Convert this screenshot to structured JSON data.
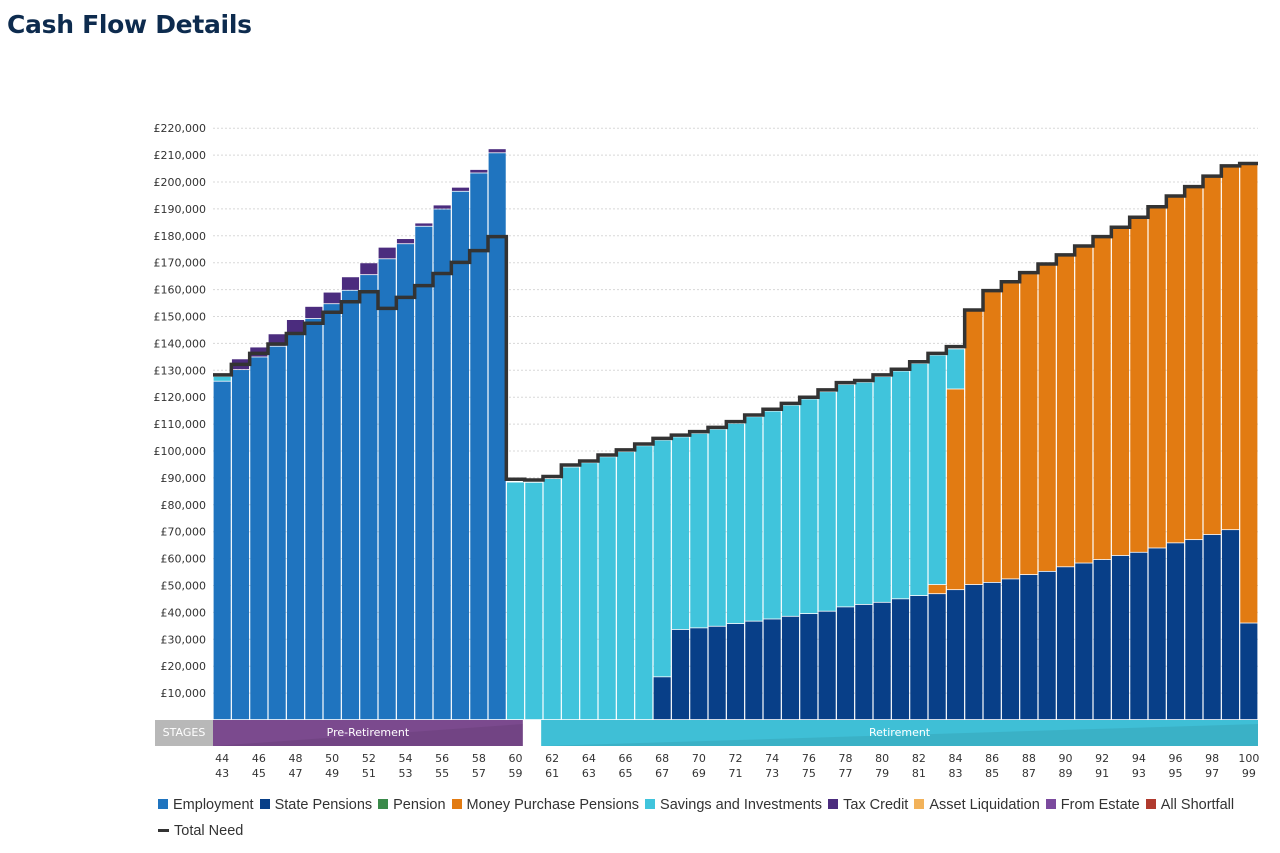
{
  "title": "Cash Flow Details",
  "chart_data": {
    "type": "bar",
    "stacked": true,
    "title": "",
    "xlabel": "",
    "ylabel": "",
    "ylim": [
      0,
      220000
    ],
    "yticks": [
      "£10,000",
      "£20,000",
      "£30,000",
      "£40,000",
      "£50,000",
      "£60,000",
      "£70,000",
      "£80,000",
      "£90,000",
      "£100,000",
      "£110,000",
      "£120,000",
      "£130,000",
      "£140,000",
      "£150,000",
      "£160,000",
      "£170,000",
      "£180,000",
      "£190,000",
      "£200,000",
      "£210,000",
      "£220,000"
    ],
    "ytick_values": [
      10000,
      20000,
      30000,
      40000,
      50000,
      60000,
      70000,
      80000,
      90000,
      100000,
      110000,
      120000,
      130000,
      140000,
      150000,
      160000,
      170000,
      180000,
      190000,
      200000,
      210000,
      220000
    ],
    "grid": true,
    "ages": [
      44,
      45,
      46,
      47,
      48,
      49,
      50,
      51,
      52,
      53,
      54,
      55,
      56,
      57,
      58,
      59,
      60,
      61,
      62,
      63,
      64,
      65,
      66,
      67,
      68,
      69,
      70,
      71,
      72,
      73,
      74,
      75,
      76,
      77,
      78,
      79,
      80,
      81,
      82,
      83,
      84,
      85,
      86,
      87,
      88,
      89,
      90,
      91,
      92,
      93,
      94,
      95,
      96,
      97,
      98,
      99,
      100
    ],
    "x_tick_labels_row1": [
      "44",
      "46",
      "48",
      "50",
      "52",
      "54",
      "56",
      "58",
      "60",
      "62",
      "64",
      "66",
      "68",
      "70",
      "72",
      "74",
      "76",
      "78",
      "80",
      "82",
      "84",
      "86",
      "88",
      "90",
      "92",
      "94",
      "96",
      "98",
      "100"
    ],
    "x_tick_labels_row2": [
      "43",
      "45",
      "47",
      "49",
      "51",
      "53",
      "55",
      "57",
      "59",
      "61",
      "63",
      "65",
      "67",
      "69",
      "71",
      "73",
      "75",
      "77",
      "79",
      "81",
      "83",
      "85",
      "87",
      "89",
      "91",
      "93",
      "95",
      "97",
      "99"
    ],
    "stages": {
      "label": "STAGES",
      "items": [
        {
          "name": "Pre-Retirement",
          "from_age": 44,
          "to_age": 60,
          "color": "#7b4a8e"
        },
        {
          "name": "Retirement",
          "from_age": 61,
          "to_age": 100,
          "color": "#3fbfd6"
        }
      ]
    },
    "series": [
      {
        "name": "Employment",
        "color": "#1f74bf",
        "values": [
          125800,
          130100,
          134800,
          138800,
          143100,
          149100,
          154600,
          159600,
          165400,
          171300,
          176900,
          183400,
          189800,
          196400,
          203200,
          210700,
          0,
          0,
          0,
          0,
          0,
          0,
          0,
          0,
          0,
          0,
          0,
          0,
          0,
          0,
          0,
          0,
          0,
          0,
          0,
          0,
          0,
          0,
          0,
          0,
          0,
          0,
          0,
          0,
          0,
          0,
          0,
          0,
          0,
          0,
          0,
          0,
          0,
          0,
          0,
          0,
          0
        ]
      },
      {
        "name": "State Pensions",
        "color": "#083f88",
        "values": [
          0,
          0,
          0,
          0,
          0,
          0,
          0,
          0,
          0,
          0,
          0,
          0,
          0,
          0,
          0,
          0,
          0,
          0,
          0,
          0,
          0,
          0,
          0,
          0,
          15900,
          33500,
          34100,
          34700,
          35700,
          36600,
          37400,
          38400,
          39400,
          40300,
          41900,
          42800,
          43600,
          44900,
          46100,
          46800,
          48300,
          50200,
          51000,
          52300,
          53900,
          55100,
          56800,
          58200,
          59500,
          61000,
          62200,
          63800,
          65700,
          66900,
          68800,
          70600,
          35900
        ]
      },
      {
        "name": "Pension",
        "color": "#3a8a4a",
        "values": [
          0,
          0,
          0,
          0,
          0,
          0,
          0,
          0,
          0,
          0,
          0,
          0,
          0,
          0,
          0,
          0,
          0,
          0,
          0,
          0,
          0,
          0,
          0,
          0,
          0,
          0,
          0,
          0,
          0,
          0,
          0,
          0,
          0,
          0,
          0,
          0,
          0,
          0,
          0,
          0,
          0,
          0,
          0,
          0,
          0,
          0,
          0,
          0,
          0,
          0,
          0,
          0,
          0,
          0,
          0,
          0,
          0
        ]
      },
      {
        "name": "Money Purchase Pensions",
        "color": "#e27b12",
        "values": [
          0,
          0,
          0,
          0,
          0,
          0,
          0,
          0,
          0,
          0,
          0,
          0,
          0,
          0,
          0,
          0,
          0,
          0,
          0,
          0,
          0,
          0,
          0,
          0,
          0,
          0,
          0,
          0,
          0,
          0,
          0,
          0,
          0,
          0,
          0,
          0,
          0,
          0,
          0,
          3400,
          74600,
          101700,
          108100,
          110100,
          111900,
          113900,
          115600,
          117500,
          119700,
          121700,
          124200,
          126500,
          128600,
          130900,
          132900,
          134900,
          170500
        ]
      },
      {
        "name": "Savings and Investments",
        "color": "#40c4dc",
        "values": [
          1800,
          0,
          0,
          0,
          0,
          0,
          0,
          0,
          0,
          0,
          0,
          0,
          0,
          0,
          0,
          0,
          88300,
          88200,
          89600,
          93900,
          95500,
          97700,
          99600,
          101800,
          88000,
          71600,
          72300,
          73300,
          74400,
          76000,
          77300,
          78500,
          79800,
          81600,
          82700,
          82600,
          83900,
          84700,
          86300,
          85300,
          14900,
          0,
          0,
          0,
          0,
          0,
          0,
          0,
          0,
          0,
          0,
          0,
          0,
          0,
          0,
          0,
          0
        ]
      },
      {
        "name": "Tax Credit",
        "color": "#4b2c7e",
        "values": [
          0,
          4000,
          3700,
          4600,
          5600,
          4500,
          4300,
          5000,
          4400,
          4300,
          1900,
          1200,
          1500,
          1500,
          1300,
          1500,
          0,
          0,
          0,
          0,
          0,
          0,
          0,
          0,
          0,
          0,
          0,
          0,
          0,
          0,
          0,
          0,
          0,
          0,
          0,
          0,
          0,
          0,
          0,
          0,
          0,
          0,
          0,
          0,
          0,
          0,
          0,
          0,
          0,
          0,
          0,
          0,
          0,
          0,
          0,
          0,
          0
        ]
      },
      {
        "name": "Asset Liquidation",
        "color": "#f2b25a",
        "values": [
          0,
          0,
          0,
          0,
          0,
          0,
          0,
          0,
          0,
          0,
          0,
          0,
          0,
          0,
          0,
          0,
          0,
          0,
          0,
          0,
          0,
          0,
          0,
          0,
          0,
          0,
          0,
          0,
          0,
          0,
          0,
          0,
          0,
          0,
          0,
          0,
          0,
          0,
          0,
          0,
          0,
          0,
          0,
          0,
          0,
          0,
          0,
          0,
          0,
          0,
          0,
          0,
          0,
          0,
          0,
          0,
          0
        ]
      },
      {
        "name": "From Estate",
        "color": "#7b4a9e",
        "values": [
          0,
          0,
          0,
          0,
          0,
          0,
          0,
          0,
          0,
          0,
          0,
          0,
          0,
          0,
          0,
          0,
          0,
          0,
          0,
          0,
          0,
          0,
          0,
          0,
          0,
          0,
          0,
          0,
          0,
          0,
          0,
          0,
          0,
          0,
          0,
          0,
          0,
          0,
          0,
          0,
          0,
          0,
          0,
          0,
          0,
          0,
          0,
          0,
          0,
          0,
          0,
          0,
          0,
          0,
          0,
          0,
          0
        ]
      },
      {
        "name": "All Shortfall",
        "color": "#b03a2e",
        "values": [
          0,
          0,
          0,
          0,
          0,
          0,
          0,
          0,
          0,
          0,
          0,
          0,
          0,
          0,
          0,
          0,
          0,
          0,
          0,
          0,
          0,
          0,
          0,
          0,
          0,
          0,
          0,
          0,
          0,
          0,
          0,
          0,
          0,
          0,
          0,
          0,
          0,
          0,
          0,
          0,
          0,
          0,
          0,
          0,
          0,
          0,
          0,
          0,
          0,
          0,
          0,
          0,
          0,
          0,
          0,
          0,
          0
        ]
      }
    ],
    "line_series": {
      "name": "Total Need",
      "color": "#333333",
      "type": "step",
      "values": [
        128300,
        132200,
        136300,
        139800,
        143700,
        147500,
        151600,
        155500,
        159200,
        153000,
        157100,
        161500,
        166000,
        170100,
        174500,
        179700,
        89500,
        89200,
        90500,
        94800,
        96300,
        98500,
        100400,
        102600,
        104700,
        105900,
        107200,
        108800,
        110900,
        113400,
        115500,
        117700,
        120000,
        122700,
        125400,
        126200,
        128300,
        130400,
        133200,
        136300,
        138800,
        152400,
        159600,
        162900,
        166300,
        169500,
        172900,
        176200,
        179700,
        183200,
        186900,
        190800,
        194800,
        198300,
        202200,
        206000,
        206900
      ]
    },
    "legend_placement": "bottom-left"
  }
}
